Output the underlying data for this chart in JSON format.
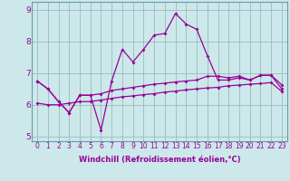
{
  "xlabel": "Windchill (Refroidissement éolien,°C)",
  "x_values": [
    0,
    1,
    2,
    3,
    4,
    5,
    6,
    7,
    8,
    9,
    10,
    11,
    12,
    13,
    14,
    15,
    16,
    17,
    18,
    19,
    20,
    21,
    22,
    23
  ],
  "line_main": [
    6.75,
    6.5,
    6.1,
    5.75,
    6.3,
    6.3,
    5.2,
    6.75,
    7.75,
    7.35,
    7.75,
    8.2,
    8.25,
    8.88,
    8.55,
    8.38,
    7.55,
    6.78,
    6.78,
    6.85,
    6.78,
    6.93,
    6.93,
    6.63
  ],
  "line_upper": [
    6.75,
    6.5,
    6.1,
    5.75,
    6.3,
    6.3,
    6.35,
    6.45,
    6.5,
    6.55,
    6.6,
    6.65,
    6.68,
    6.72,
    6.75,
    6.78,
    6.9,
    6.9,
    6.85,
    6.9,
    6.78,
    6.93,
    6.93,
    6.5
  ],
  "line_lower": [
    6.05,
    6.0,
    6.0,
    6.05,
    6.1,
    6.1,
    6.15,
    6.2,
    6.25,
    6.28,
    6.32,
    6.35,
    6.4,
    6.43,
    6.47,
    6.5,
    6.53,
    6.55,
    6.6,
    6.62,
    6.65,
    6.67,
    6.7,
    6.42
  ],
  "bg_color": "#cce8ea",
  "line_color": "#990099",
  "grid_color": "#99bbbd",
  "ylim": [
    4.85,
    9.25
  ],
  "xlim": [
    -0.5,
    23.5
  ],
  "yticks": [
    5,
    6,
    7,
    8,
    9
  ],
  "xtick_fontsize": 5.5,
  "ytick_fontsize": 6.5
}
